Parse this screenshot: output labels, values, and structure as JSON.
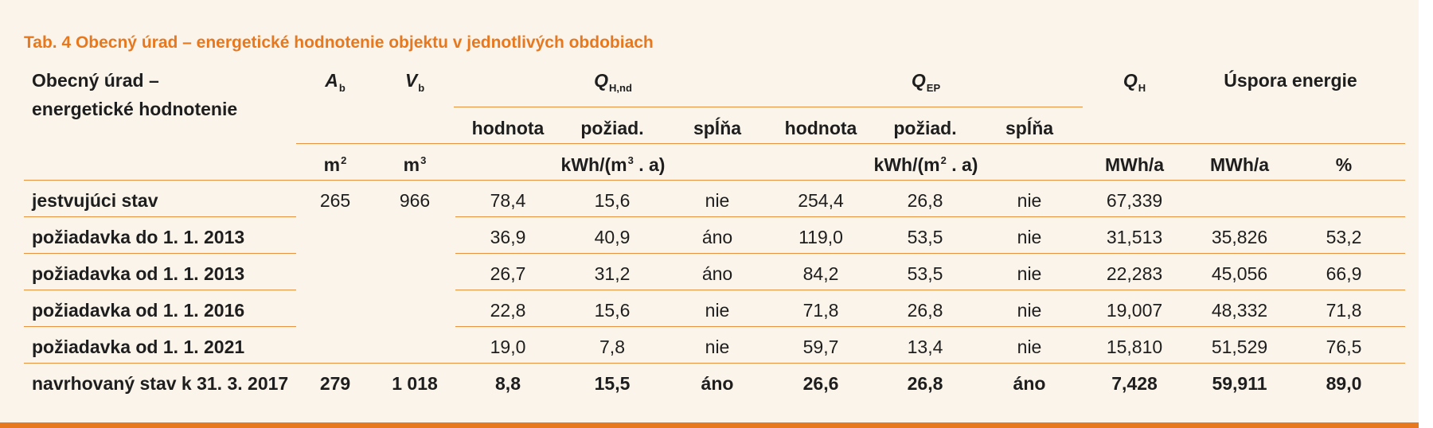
{
  "title": "Tab. 4 Obecný úrad – energetické hodnotenie objektu v jednotlivých obdobiach",
  "header": {
    "row_label_line1": "Obecný úrad –",
    "row_label_line2": "energetické hodnotenie",
    "ab_symbol": "A",
    "ab_sub": "b",
    "vb_symbol": "V",
    "vb_sub": "b",
    "qhnd_symbol": "Q",
    "qhnd_sub": "H,nd",
    "qep_symbol": "Q",
    "qep_sub": "EP",
    "qh_symbol": "Q",
    "qh_sub": "H",
    "uspora": "Úspora energie",
    "sub_hodnota": "hodnota",
    "sub_poziad": "požiad.",
    "sub_splna": "spĺňa"
  },
  "units": {
    "m2_base": "m",
    "m2_exp": "2",
    "m3_base": "m",
    "m3_exp": "3",
    "kwh_m3_pre": "kWh/(m",
    "kwh_m3_exp": "3",
    "kwh_m3_post": " . a)",
    "kwh_m2_pre": "kWh/(m",
    "kwh_m2_exp": "2",
    "kwh_m2_post": " . a)",
    "mwh_a": "MWh/a",
    "mwh_a_2": "MWh/a",
    "percent": "%"
  },
  "rows": [
    {
      "label": "jestvujúci stav",
      "ab": "265",
      "vb": "966",
      "qhnd_val": "78,4",
      "qhnd_req": "15,6",
      "qhnd_ok": "nie",
      "qep_val": "254,4",
      "qep_req": "26,8",
      "qep_ok": "nie",
      "qh": "67,339",
      "save_mwh": "",
      "save_pct": ""
    },
    {
      "label": "požiadavka do 1. 1. 2013",
      "ab": "",
      "vb": "",
      "qhnd_val": "36,9",
      "qhnd_req": "40,9",
      "qhnd_ok": "áno",
      "qep_val": "119,0",
      "qep_req": "53,5",
      "qep_ok": "nie",
      "qh": "31,513",
      "save_mwh": "35,826",
      "save_pct": "53,2"
    },
    {
      "label": "požiadavka od 1. 1. 2013",
      "ab": "",
      "vb": "",
      "qhnd_val": "26,7",
      "qhnd_req": "31,2",
      "qhnd_ok": "áno",
      "qep_val": "84,2",
      "qep_req": "53,5",
      "qep_ok": "nie",
      "qh": "22,283",
      "save_mwh": "45,056",
      "save_pct": "66,9"
    },
    {
      "label": "požiadavka od 1. 1. 2016",
      "ab": "",
      "vb": "",
      "qhnd_val": "22,8",
      "qhnd_req": "15,6",
      "qhnd_ok": "nie",
      "qep_val": "71,8",
      "qep_req": "26,8",
      "qep_ok": "nie",
      "qh": "19,007",
      "save_mwh": "48,332",
      "save_pct": "71,8"
    },
    {
      "label": "požiadavka od 1. 1. 2021",
      "ab": "",
      "vb": "",
      "qhnd_val": "19,0",
      "qhnd_req": "7,8",
      "qhnd_ok": "nie",
      "qep_val": "59,7",
      "qep_req": "13,4",
      "qep_ok": "nie",
      "qh": "15,810",
      "save_mwh": "51,529",
      "save_pct": "76,5"
    },
    {
      "label": "navrhovaný stav k 31. 3. 2017",
      "ab": "279",
      "vb": "1 018",
      "qhnd_val": "8,8",
      "qhnd_req": "15,5",
      "qhnd_ok": "áno",
      "qep_val": "26,6",
      "qep_req": "26,8",
      "qep_ok": "áno",
      "qh": "7,428",
      "save_mwh": "59,911",
      "save_pct": "89,0"
    }
  ],
  "colors": {
    "accent": "#e8781e",
    "rule": "#e8923f",
    "background": "#fbf4ea"
  }
}
